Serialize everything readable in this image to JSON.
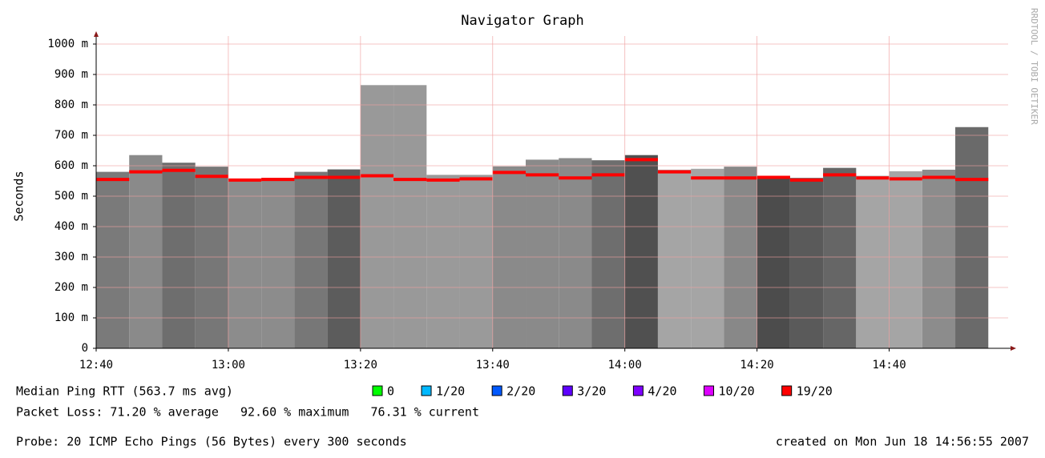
{
  "chart_data": {
    "type": "smokeping",
    "title": "Navigator Graph",
    "ylabel": "Seconds",
    "watermark": "RRDTOOL / TOBI OETIKER",
    "x": [
      760,
      765,
      770,
      775,
      780,
      785,
      790,
      795,
      800,
      805,
      810,
      815,
      820,
      825,
      830,
      835,
      840,
      845,
      850,
      855,
      860,
      865,
      870,
      875,
      880,
      885,
      890
    ],
    "bar_width": 5,
    "smoke": [
      580,
      635,
      610,
      597,
      556,
      560,
      580,
      588,
      865,
      865,
      570,
      570,
      598,
      620,
      625,
      618,
      635,
      587,
      590,
      597,
      567,
      560,
      593,
      567,
      582,
      587,
      727
    ],
    "smoke_colors": [
      "#7a7a7a",
      "#8a8a8a",
      "#6e6e6e",
      "#777777",
      "#8c8c8c",
      "#8c8c8c",
      "#777777",
      "#5c5c5c",
      "#999999",
      "#999999",
      "#9a9a9a",
      "#9a9a9a",
      "#8a8a8a",
      "#8a8a8a",
      "#8a8a8a",
      "#6e6e6e",
      "#505050",
      "#a5a5a5",
      "#a5a5a5",
      "#888888",
      "#4c4c4c",
      "#5a5a5a",
      "#666666",
      "#a5a5a5",
      "#a5a5a5",
      "#8c8c8c",
      "#6a6a6a"
    ],
    "series": [
      {
        "color": "#ff0000",
        "values": [
          555,
          580,
          585,
          565,
          553,
          555,
          562,
          562,
          567,
          555,
          553,
          557,
          578,
          570,
          560,
          570,
          620,
          580,
          560,
          560,
          562,
          553,
          570,
          560,
          557,
          562,
          555
        ]
      }
    ],
    "xlim": [
      760,
      898
    ],
    "ylim": [
      0,
      1000
    ],
    "xticks": [
      {
        "value": 760,
        "label": "12:40"
      },
      {
        "value": 780,
        "label": "13:00"
      },
      {
        "value": 800,
        "label": "13:20"
      },
      {
        "value": 820,
        "label": "13:40"
      },
      {
        "value": 840,
        "label": "14:00"
      },
      {
        "value": 860,
        "label": "14:20"
      },
      {
        "value": 880,
        "label": "14:40"
      }
    ],
    "yticks": [
      0,
      {
        "value": 100,
        "label": "100 m"
      },
      {
        "value": 200,
        "label": "200 m"
      },
      {
        "value": 300,
        "label": "300 m"
      },
      {
        "value": 400,
        "label": "400 m"
      },
      {
        "value": 500,
        "label": "500 m"
      },
      {
        "value": 600,
        "label": "600 m"
      },
      {
        "value": 700,
        "label": "700 m"
      },
      {
        "value": 800,
        "label": "800 m"
      },
      {
        "value": 900,
        "label": "900 m"
      },
      {
        "value": 1000,
        "label": "1000 m"
      }
    ],
    "grid": true,
    "legend_title": "Median Ping RTT (563.7 ms avg)",
    "loss_legend": [
      {
        "label": "0",
        "color": "#00ff00"
      },
      {
        "label": "1/20",
        "color": "#00b8ff"
      },
      {
        "label": "2/20",
        "color": "#0059ff"
      },
      {
        "label": "3/20",
        "color": "#5e00ff"
      },
      {
        "label": "4/20",
        "color": "#7e00ff"
      },
      {
        "label": "10/20",
        "color": "#dd00ff"
      },
      {
        "label": "19/20",
        "color": "#ff0000"
      }
    ],
    "loss_line": "Packet Loss: 71.20 % average   92.60 % maximum   76.31 % current",
    "probe_line": "Probe: 20 ICMP Echo Pings (56 Bytes) every 300 seconds",
    "created_line": "created on Mon Jun 18 14:56:55 2007"
  }
}
